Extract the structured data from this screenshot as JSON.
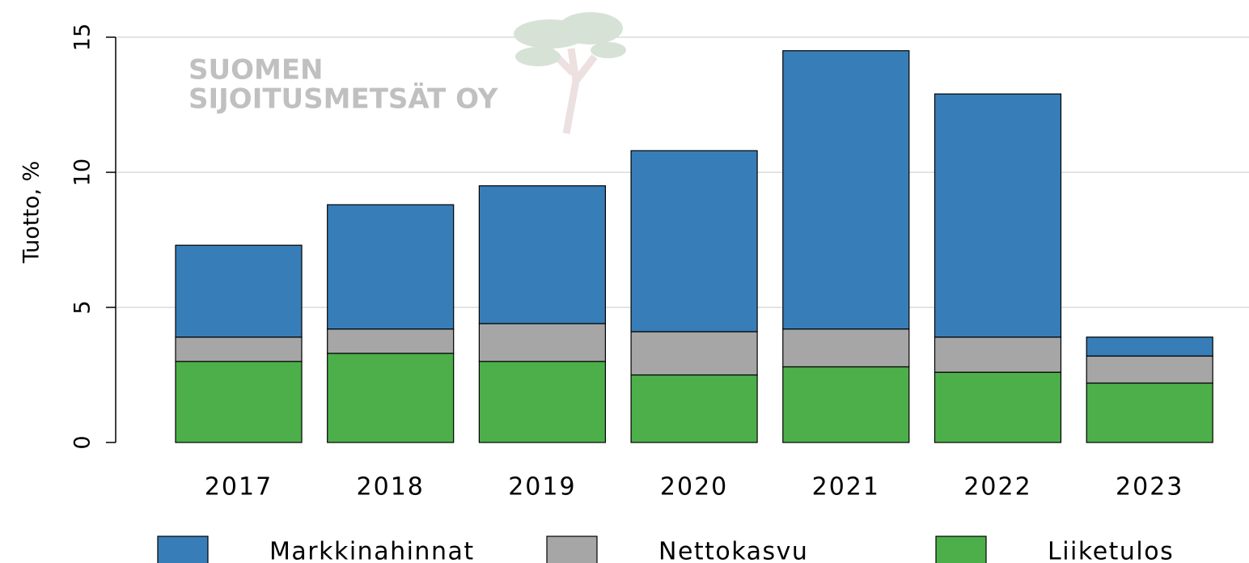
{
  "chart_data": {
    "type": "stacked_bar",
    "watermark": [
      "SUOMEN",
      "SIJOITUSMETSÄT OY"
    ],
    "ylabel": "Tuotto, %",
    "categories": [
      "2017",
      "2018",
      "2019",
      "2020",
      "2021",
      "2022",
      "2023"
    ],
    "series": [
      {
        "name": "Markkinahinnat",
        "color": "#377eb8",
        "values": [
          3.4,
          4.6,
          5.1,
          6.7,
          10.3,
          9.0,
          0.7
        ]
      },
      {
        "name": "Nettokasvu",
        "color": "#a6a6a6",
        "values": [
          0.9,
          0.9,
          1.4,
          1.6,
          1.4,
          1.3,
          1.0
        ]
      },
      {
        "name": "Liiketulos",
        "color": "#4daf4a",
        "values": [
          3.0,
          3.3,
          3.0,
          2.5,
          2.8,
          2.6,
          2.2
        ]
      }
    ],
    "ylim": [
      0,
      15
    ],
    "yticks": [
      0,
      5,
      10,
      15
    ],
    "grid": true
  }
}
